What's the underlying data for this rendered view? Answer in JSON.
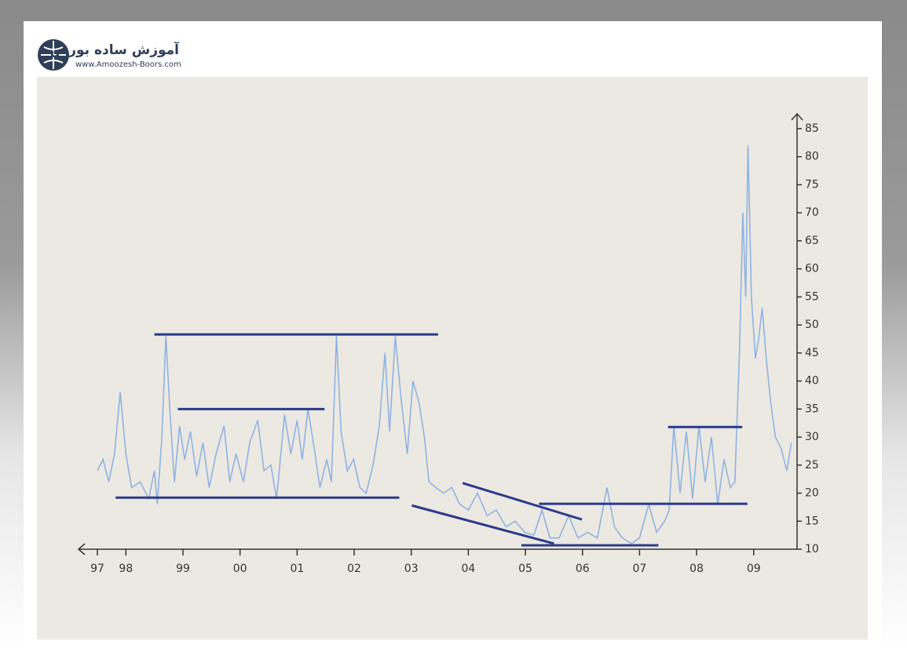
{
  "brand": {
    "name": "آموزش ساده بورس",
    "url": "www.Amoozesh-Boors.com"
  },
  "chart_data": {
    "type": "line",
    "xlim": [
      1997.17,
      2009.76
    ],
    "xticks": [
      {
        "value": 1997.5,
        "label": "97"
      },
      {
        "value": 1998,
        "label": "98"
      },
      {
        "value": 1999,
        "label": "99"
      },
      {
        "value": 2000,
        "label": "00"
      },
      {
        "value": 2001,
        "label": "01"
      },
      {
        "value": 2002,
        "label": "02"
      },
      {
        "value": 2003,
        "label": "03"
      },
      {
        "value": 2004,
        "label": "04"
      },
      {
        "value": 2005,
        "label": "05"
      },
      {
        "value": 2006,
        "label": "06"
      },
      {
        "value": 2007,
        "label": "07"
      },
      {
        "value": 2008,
        "label": "08"
      },
      {
        "value": 2009,
        "label": "09"
      }
    ],
    "ylim": [
      10,
      85
    ],
    "yticks": [
      10,
      15,
      20,
      25,
      30,
      35,
      40,
      45,
      50,
      55,
      60,
      65,
      70,
      75,
      80,
      85
    ],
    "series": [
      {
        "color": "#8fb3e3",
        "x": [
          1997.5,
          1997.6,
          1997.7,
          1997.8,
          1997.9,
          1998.0,
          1998.1,
          1998.25,
          1998.4,
          1998.5,
          1998.55,
          1998.63,
          1998.7,
          1998.77,
          1998.85,
          1998.94,
          1999.03,
          1999.13,
          1999.24,
          1999.35,
          1999.46,
          1999.58,
          1999.72,
          1999.82,
          1999.93,
          2000.06,
          2000.17,
          2000.31,
          2000.42,
          2000.54,
          2000.64,
          2000.78,
          2000.89,
          2001.0,
          2001.09,
          2001.19,
          2001.3,
          2001.4,
          2001.52,
          2001.6,
          2001.69,
          2001.77,
          2001.88,
          2001.99,
          2002.1,
          2002.21,
          2002.33,
          2002.44,
          2002.54,
          2002.62,
          2002.72,
          2002.82,
          2002.93,
          2003.03,
          2003.14,
          2003.23,
          2003.31,
          2003.43,
          2003.57,
          2003.71,
          2003.85,
          2004.0,
          2004.16,
          2004.33,
          2004.49,
          2004.66,
          2004.82,
          2004.99,
          2005.15,
          2005.29,
          2005.43,
          2005.59,
          2005.76,
          2005.92,
          2006.09,
          2006.26,
          2006.43,
          2006.56,
          2006.7,
          2006.86,
          2007.0,
          2007.16,
          2007.3,
          2007.44,
          2007.52,
          2007.6,
          2007.71,
          2007.82,
          2007.93,
          2008.04,
          2008.15,
          2008.26,
          2008.37,
          2008.48,
          2008.59,
          2008.67,
          2008.75,
          2008.81,
          2008.86,
          2008.9,
          2008.96,
          2009.03,
          2009.08,
          2009.15,
          2009.22,
          2009.3,
          2009.38,
          2009.48,
          2009.58,
          2009.66
        ],
        "values": [
          24,
          26,
          22,
          27,
          38,
          27,
          21,
          22,
          19,
          24,
          18,
          30,
          48,
          35,
          22,
          32,
          26,
          31,
          23,
          29,
          21,
          27,
          32,
          22,
          27,
          22,
          29,
          33,
          24,
          25,
          19,
          34,
          27,
          33,
          26,
          35,
          28,
          21,
          26,
          22,
          48,
          31,
          24,
          26,
          21,
          20,
          25,
          32,
          45,
          31,
          48,
          37,
          27,
          40,
          36,
          30,
          22,
          21,
          20,
          21,
          18,
          17,
          20,
          16,
          17,
          14,
          15,
          13,
          12.5,
          17,
          12,
          12,
          16,
          12,
          13,
          12,
          21,
          14,
          12,
          11,
          12,
          18,
          13,
          15,
          17,
          32,
          20,
          31,
          19,
          32,
          22,
          30,
          18,
          26,
          21,
          22,
          45,
          70,
          55,
          82,
          55,
          44,
          47,
          53,
          44,
          36,
          30,
          28,
          24,
          29
        ]
      }
    ],
    "annotations": [
      {
        "color": "#2b3a8c",
        "x": [
          1998.5,
          2003.47
        ],
        "y": [
          48.3,
          48.3
        ]
      },
      {
        "color": "#2b3a8c",
        "x": [
          1998.91,
          2001.48
        ],
        "y": [
          35.0,
          35.0
        ]
      },
      {
        "color": "#2b3a8c",
        "x": [
          1997.82,
          2002.79
        ],
        "y": [
          19.2,
          19.2
        ]
      },
      {
        "color": "#2b3a8c",
        "x": [
          2003.01,
          2005.5
        ],
        "y": [
          17.8,
          11.0
        ]
      },
      {
        "color": "#2b3a8c",
        "x": [
          2003.9,
          2005.99
        ],
        "y": [
          21.8,
          15.3
        ]
      },
      {
        "color": "#2b3a8c",
        "x": [
          2004.93,
          2007.33
        ],
        "y": [
          10.7,
          10.7
        ]
      },
      {
        "color": "#2b3a8c",
        "x": [
          2005.24,
          2008.89
        ],
        "y": [
          18.1,
          18.1
        ]
      },
      {
        "color": "#2b3a8c",
        "x": [
          2007.5,
          2008.8
        ],
        "y": [
          31.8,
          31.8
        ]
      }
    ]
  }
}
